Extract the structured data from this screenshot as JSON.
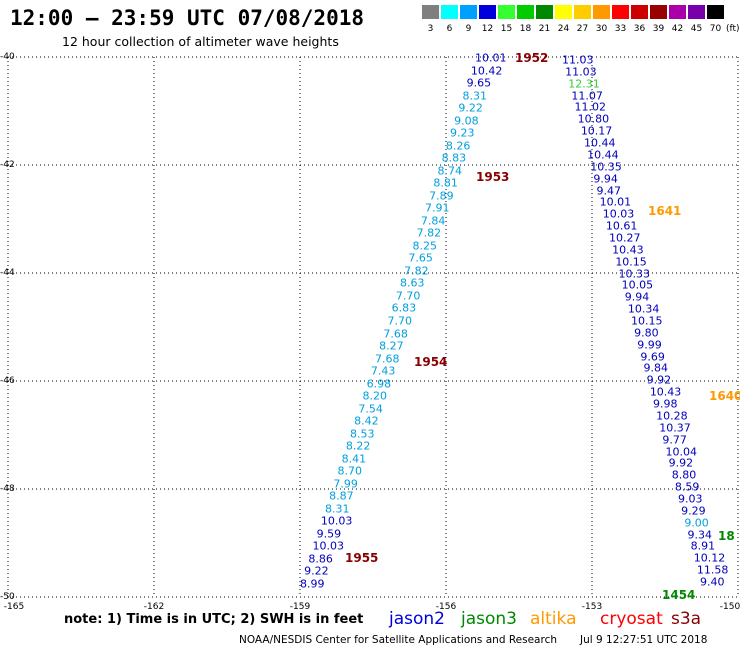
{
  "header": {
    "title": "12:00 – 23:59 UTC 07/08/2018",
    "subtitle": "12 hour collection of altimeter wave heights"
  },
  "color_scale": {
    "unit": "(ft)",
    "bins": [
      {
        "label": "3",
        "color": "#7f7f7f"
      },
      {
        "label": "6",
        "color": "#00ffff"
      },
      {
        "label": "9",
        "color": "#00a0ff"
      },
      {
        "label": "12",
        "color": "#0000dd"
      },
      {
        "label": "15",
        "color": "#33ff33"
      },
      {
        "label": "18",
        "color": "#00cc00"
      },
      {
        "label": "21",
        "color": "#008800"
      },
      {
        "label": "24",
        "color": "#ffff00"
      },
      {
        "label": "27",
        "color": "#ffcc00"
      },
      {
        "label": "30",
        "color": "#ff9900"
      },
      {
        "label": "33",
        "color": "#ff0000"
      },
      {
        "label": "36",
        "color": "#cc0000"
      },
      {
        "label": "39",
        "color": "#990000"
      },
      {
        "label": "42",
        "color": "#aa00aa"
      },
      {
        "label": "45",
        "color": "#7700aa"
      },
      {
        "label": "70",
        "color": "#000000"
      }
    ]
  },
  "axes": {
    "lat_labels": [
      "-40",
      "-42",
      "-44",
      "-46",
      "-48",
      "-50"
    ],
    "lon_labels": [
      "-165",
      "-162",
      "-159",
      "-156",
      "-153",
      "-150"
    ]
  },
  "passes": {
    "jason2_left": {
      "color": "#00a0dd",
      "values": [
        "10.01",
        "10.42",
        "9.65",
        "8.31",
        "9.22",
        "9.08",
        "9.23",
        "8.26",
        "8.83",
        "8.74",
        "8.81",
        "7.89",
        "7.91",
        "7.84",
        "7.82",
        "8.25",
        "7.65",
        "7.82",
        "8.63",
        "7.70",
        "6.83",
        "7.70",
        "7.68",
        "8.27",
        "7.68",
        "7.43",
        "6.98",
        "8.20",
        "7.54",
        "8.42",
        "8.53",
        "8.22",
        "8.41",
        "8.70",
        "7.99",
        "8.87",
        "8.31",
        "10.03",
        "9.59",
        "10.03",
        "8.86",
        "9.22",
        "8.99"
      ]
    },
    "jason2_right": {
      "color": "#0000bb",
      "values": [
        "11.03",
        "11.03",
        "12.31",
        "11.07",
        "11.02",
        "10.80",
        "10.17",
        "10.44",
        "10.44",
        "10.35",
        "9.94",
        "9.47",
        "10.01",
        "10.03",
        "10.61",
        "10.27",
        "10.43",
        "10.15",
        "10.33",
        "10.05",
        "9.94",
        "10.34",
        "10.15",
        "9.80",
        "9.99",
        "9.69",
        "9.84",
        "9.92",
        "10.43",
        "9.98",
        "10.28",
        "10.37",
        "9.77",
        "10.04",
        "9.92",
        "8.80",
        "8.59",
        "9.03",
        "9.29",
        "9.00",
        "9.34",
        "8.91",
        "10.12",
        "11.58",
        "9.40"
      ]
    }
  },
  "time_labels": [
    {
      "text": "1952",
      "color": "#880000"
    },
    {
      "text": "1953",
      "color": "#880000"
    },
    {
      "text": "1954",
      "color": "#880000"
    },
    {
      "text": "1955",
      "color": "#880000"
    },
    {
      "text": "1641",
      "color": "#ff9900"
    },
    {
      "text": "1640",
      "color": "#ff9900"
    },
    {
      "text": "1454",
      "color": "#008800"
    },
    {
      "text": "18",
      "color": "#008800"
    }
  ],
  "footer": {
    "note": "note: 1) Time is in UTC; 2) SWH is in feet",
    "legend": [
      {
        "name": "jason2",
        "color": "#0000dd"
      },
      {
        "name": "jason3",
        "color": "#008800"
      },
      {
        "name": "altika",
        "color": "#ff9900"
      },
      {
        "name": "cryosat",
        "color": "#ff0000"
      },
      {
        "name": "s3a",
        "color": "#880000"
      }
    ],
    "credit": "NOAA/NESDIS Center for Satellite Applications and Research",
    "timestamp": "Jul  9 12:27:51 UTC 2018"
  }
}
